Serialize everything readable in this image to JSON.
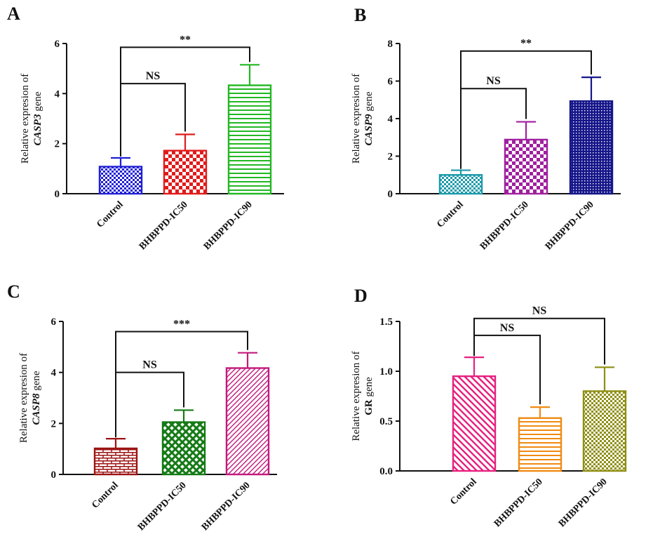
{
  "chart_data": [
    {
      "panel": "A",
      "type": "bar",
      "categories": [
        "Control",
        "BHBPPD-IC50",
        "BHBPPD-IC90"
      ],
      "values": [
        1.08,
        1.72,
        4.33
      ],
      "errors": [
        0.35,
        0.65,
        0.82
      ],
      "colors": [
        "#1f1fd6",
        "#e01b1b",
        "#22b822"
      ],
      "patterns": [
        "checker",
        "checker-big",
        "hlines"
      ],
      "ylabel_pre": "Relative expresion of",
      "ylabel_gene": "CASP3",
      "ylabel_post": "gene",
      "gene_italic": true,
      "ylim": [
        0,
        6
      ],
      "yticks": [
        "0",
        "2",
        "4",
        "6"
      ],
      "annotations": [
        {
          "from": 0,
          "to": 1,
          "value": 4.4,
          "text": "NS"
        },
        {
          "from": 0,
          "to": 2,
          "value": 5.85,
          "text": "**"
        }
      ]
    },
    {
      "panel": "B",
      "type": "bar",
      "categories": [
        "Control",
        "BHBPPD-IC50",
        "BHBPPD-IC90"
      ],
      "values": [
        1.0,
        2.88,
        4.93
      ],
      "errors": [
        0.25,
        0.95,
        1.27
      ],
      "colors": [
        "#1b9aaa",
        "#a01fa0",
        "#16168a"
      ],
      "patterns": [
        "checker",
        "checker-big",
        "dots"
      ],
      "ylabel_pre": "Relative expresion of",
      "ylabel_gene": "CASP9",
      "ylabel_post": "gene",
      "gene_italic": true,
      "ylim": [
        0,
        8
      ],
      "yticks": [
        "0",
        "2",
        "4",
        "6",
        "8"
      ],
      "annotations": [
        {
          "from": 0,
          "to": 1,
          "value": 5.6,
          "text": "NS"
        },
        {
          "from": 0,
          "to": 2,
          "value": 7.6,
          "text": "**"
        }
      ]
    },
    {
      "panel": "C",
      "type": "bar",
      "categories": [
        "Control",
        "BHBPPD-IC50",
        "BHBPPD-IC90"
      ],
      "values": [
        1.02,
        2.05,
        4.17
      ],
      "errors": [
        0.38,
        0.47,
        0.6
      ],
      "colors": [
        "#9c1313",
        "#157a15",
        "#c2197c"
      ],
      "patterns": [
        "brick",
        "crosshatch",
        "diag"
      ],
      "ylabel_pre": "Relative expresion of",
      "ylabel_gene": "CASP8",
      "ylabel_post": "gene",
      "gene_italic": true,
      "ylim": [
        0,
        6
      ],
      "yticks": [
        "0",
        "2",
        "4",
        "6"
      ],
      "annotations": [
        {
          "from": 0,
          "to": 1,
          "value": 4.0,
          "text": "NS"
        },
        {
          "from": 0,
          "to": 2,
          "value": 5.6,
          "text": "***"
        }
      ]
    },
    {
      "panel": "D",
      "type": "bar",
      "categories": [
        "Control",
        "BHBPPD-IC50",
        "BHBPPD-IC90"
      ],
      "values": [
        0.95,
        0.53,
        0.8
      ],
      "errors": [
        0.19,
        0.11,
        0.24
      ],
      "colors": [
        "#e8207f",
        "#f08a12",
        "#8f8f14"
      ],
      "patterns": [
        "diag-back",
        "hlines",
        "checker"
      ],
      "ylabel_pre": "Relative expresion of",
      "ylabel_gene": "GR",
      "ylabel_post": "gene",
      "gene_italic": false,
      "ylim": [
        0,
        1.5
      ],
      "yticks": [
        "0.0",
        "0.5",
        "1.0",
        "1.5"
      ],
      "annotations": [
        {
          "from": 0,
          "to": 1,
          "value": 1.36,
          "text": "NS"
        },
        {
          "from": 0,
          "to": 2,
          "value": 1.53,
          "text": "NS"
        }
      ]
    }
  ]
}
